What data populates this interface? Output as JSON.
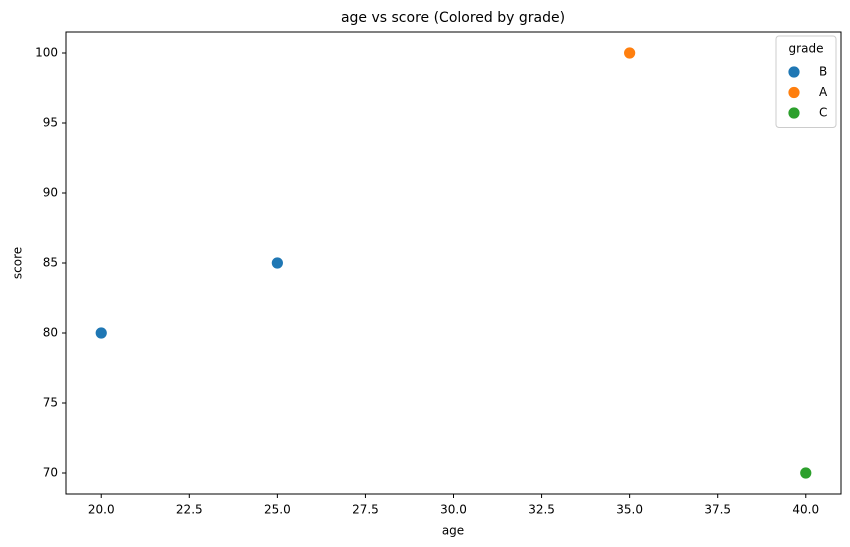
{
  "chart_data": {
    "type": "scatter",
    "title": "age vs score (Colored by grade)",
    "xlabel": "age",
    "ylabel": "score",
    "legend_title": "grade",
    "legend": "upper right",
    "series": [
      {
        "name": "B",
        "color": "#1f77b4",
        "x": [
          20,
          25
        ],
        "values": [
          80,
          85
        ]
      },
      {
        "name": "A",
        "color": "#ff7f0e",
        "x": [
          35
        ],
        "values": [
          100
        ]
      },
      {
        "name": "C",
        "color": "#2ca02c",
        "x": [
          40
        ],
        "values": [
          70
        ]
      }
    ],
    "xlim": [
      19,
      41
    ],
    "xticks": [
      {
        "value": 20,
        "label": "20.0"
      },
      {
        "value": 22.5,
        "label": "22.5"
      },
      {
        "value": 25,
        "label": "25.0"
      },
      {
        "value": 27.5,
        "label": "27.5"
      },
      {
        "value": 30,
        "label": "30.0"
      },
      {
        "value": 32.5,
        "label": "32.5"
      },
      {
        "value": 35,
        "label": "35.0"
      },
      {
        "value": 37.5,
        "label": "37.5"
      },
      {
        "value": 40,
        "label": "40.0"
      }
    ],
    "ylim": [
      68.5,
      101.5
    ],
    "yticks": [
      70,
      75,
      80,
      85,
      90,
      95,
      100
    ],
    "grid": false
  }
}
